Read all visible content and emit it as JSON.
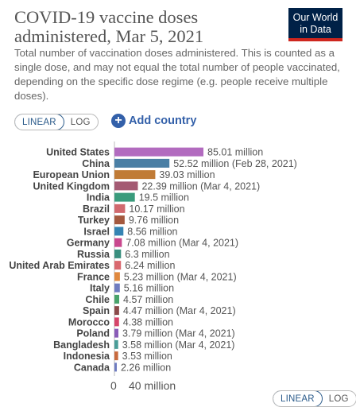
{
  "header": {
    "title": "COVID-19 vaccine doses administered, Mar 5, 2021",
    "subtitle": "Total number of vaccination doses administered. This is counted as a single dose, and may not equal the total number of people vaccinated, depending on the specific dose regime (e.g. people receive multiple doses).",
    "logo_line1": "Our World",
    "logo_line2": "in Data"
  },
  "controls": {
    "linear_label": "LINEAR",
    "log_label": "LOG",
    "add_country_label": "Add country",
    "scale": "linear"
  },
  "axis": {
    "zero_label": "0",
    "tick_label": "40 million"
  },
  "chart_data": {
    "type": "bar",
    "orientation": "horizontal",
    "unit": "million doses",
    "categories": [
      "United States",
      "China",
      "European Union",
      "United Kingdom",
      "India",
      "Brazil",
      "Turkey",
      "Israel",
      "Germany",
      "Russia",
      "United Arab Emirates",
      "France",
      "Italy",
      "Chile",
      "Spain",
      "Morocco",
      "Poland",
      "Bangladesh",
      "Indonesia",
      "Canada"
    ],
    "values": [
      85.01,
      52.52,
      39.03,
      22.39,
      19.5,
      10.17,
      9.76,
      8.56,
      7.08,
      6.3,
      6.24,
      5.23,
      5.16,
      4.57,
      4.47,
      4.38,
      3.79,
      3.58,
      3.53,
      2.26
    ],
    "labels": [
      "85.01 million",
      "52.52 million (Feb 28, 2021)",
      "39.03 million",
      "22.39 million (Mar 4, 2021)",
      "19.5 million",
      "10.17 million",
      "9.76 million",
      "8.56 million",
      "7.08 million (Mar 4, 2021)",
      "6.3 million",
      "6.24 million",
      "5.23 million (Mar 4, 2021)",
      "5.16 million",
      "4.57 million",
      "4.47 million (Mar 4, 2021)",
      "4.38 million",
      "3.79 million (Mar 4, 2021)",
      "3.58 million (Mar 4, 2021)",
      "3.53 million",
      "2.26 million"
    ],
    "colors": [
      "#b26bbf",
      "#4a7fa5",
      "#c07b36",
      "#a45a73",
      "#3a9b7c",
      "#d1696e",
      "#a4593f",
      "#3584b3",
      "#c9488e",
      "#3a8f7f",
      "#d9686f",
      "#e0893f",
      "#6f7cc0",
      "#49a36b",
      "#8b4a4a",
      "#d6456a",
      "#8a5cb8",
      "#4a9d98",
      "#c86a3e",
      "#6f7cc0"
    ],
    "xlim": [
      0,
      85.01
    ],
    "xticks": [
      0,
      40
    ]
  }
}
